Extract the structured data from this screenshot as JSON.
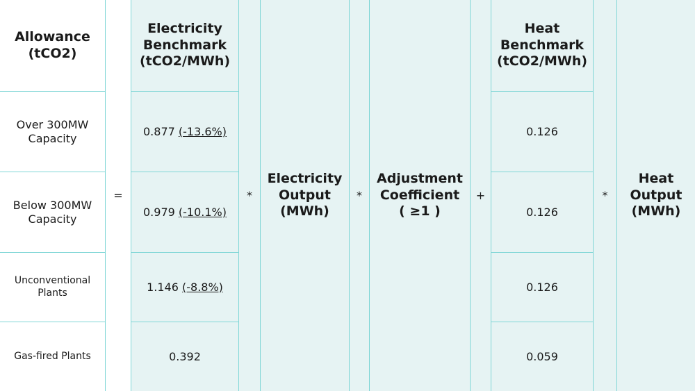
{
  "header": {
    "allowance": [
      "Allowance",
      "(tCO2)"
    ],
    "electricity_benchmark": [
      "Electricity",
      "Benchmark",
      "(tCO2/MWh)"
    ],
    "heat_benchmark": [
      "Heat",
      "Benchmark",
      "(tCO2/MWh)"
    ]
  },
  "operators": {
    "equals": "=",
    "multiply_1": "*",
    "multiply_2": "*",
    "plus": "+",
    "multiply_3": "*"
  },
  "terms": {
    "electricity_output": [
      "Electricity",
      "Output",
      "(MWh)"
    ],
    "adjustment_coefficient": [
      "Adjustment",
      "Coefficient",
      "( ≥1 )"
    ],
    "heat_output": [
      "Heat",
      "Output",
      "(MWh)"
    ]
  },
  "rows": [
    {
      "label": [
        "Over 300MW",
        "Capacity"
      ],
      "electricity_value": "0.877",
      "electricity_change": "(-13.6%)",
      "heat_value": "0.126"
    },
    {
      "label": [
        "Below 300MW",
        "Capacity"
      ],
      "electricity_value": "0.979",
      "electricity_change": "(-10.1%)",
      "heat_value": "0.126"
    },
    {
      "label": [
        "Unconventional",
        "Plants"
      ],
      "electricity_value": "1.146",
      "electricity_change": "(-8.8%)",
      "heat_value": "0.126"
    },
    {
      "label": [
        "Gas-fired Plants"
      ],
      "electricity_value": "0.392",
      "electricity_change": "",
      "heat_value": "0.059"
    }
  ]
}
